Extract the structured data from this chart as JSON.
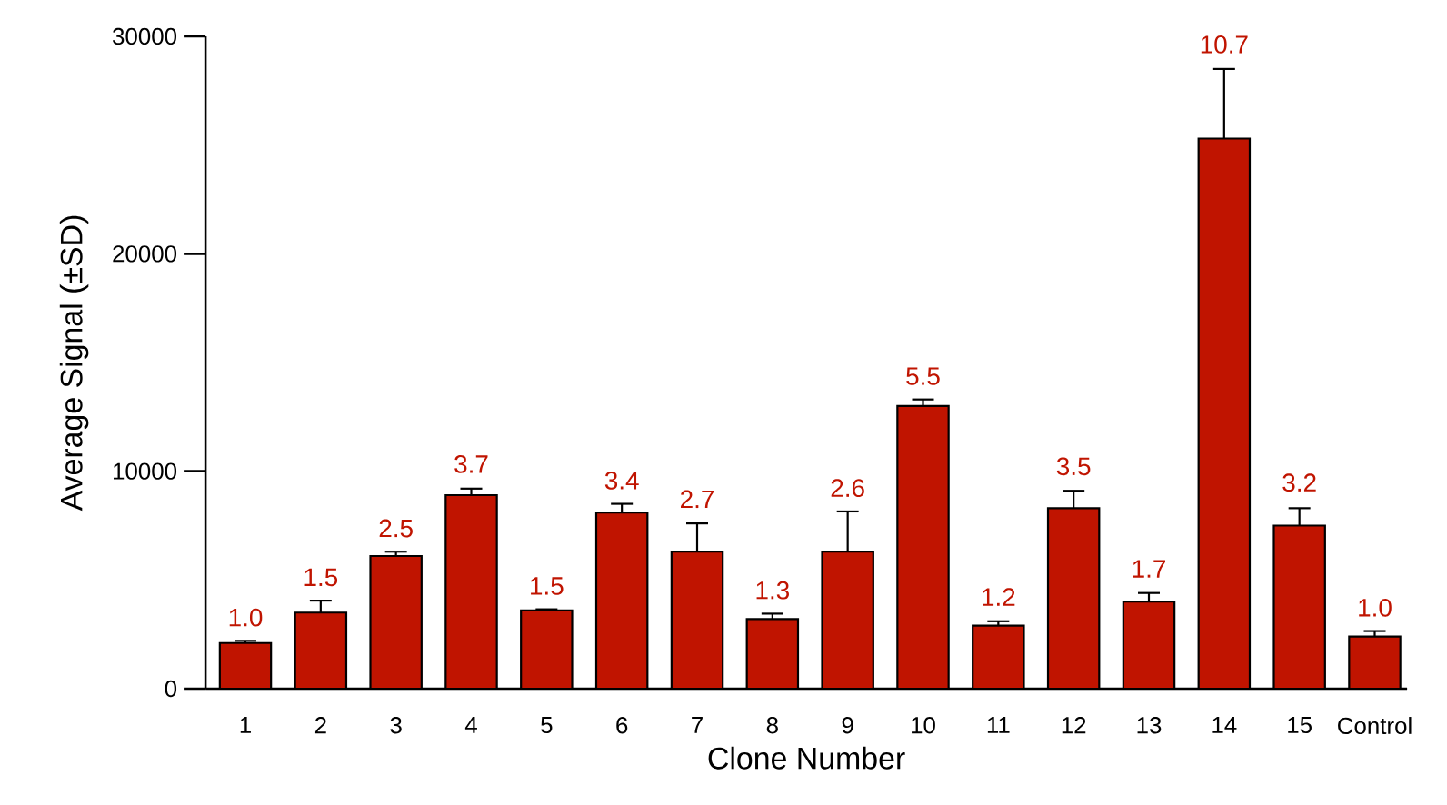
{
  "chart_data": {
    "type": "bar",
    "xlabel": "Clone Number",
    "ylabel": "Average Signal (±SD)",
    "categories": [
      "1",
      "2",
      "3",
      "4",
      "5",
      "6",
      "7",
      "8",
      "9",
      "10",
      "11",
      "12",
      "13",
      "14",
      "15",
      "Control"
    ],
    "values": [
      2100,
      3500,
      6100,
      8900,
      3600,
      8100,
      6300,
      3200,
      6300,
      13000,
      2900,
      8300,
      4000,
      25300,
      7500,
      2400
    ],
    "errors": [
      100,
      550,
      200,
      300,
      50,
      400,
      1300,
      250,
      1850,
      300,
      200,
      800,
      400,
      3200,
      800,
      250
    ],
    "annotations": [
      {
        "text": "1.0",
        "x": "1",
        "y": 2150
      },
      {
        "text": "1.5",
        "x": "2",
        "y": 4000
      },
      {
        "text": "2.5",
        "x": "3",
        "y": 6250
      },
      {
        "text": "3.7",
        "x": "4",
        "y": 9200
      },
      {
        "text": "1.5",
        "x": "5",
        "y": 3600
      },
      {
        "text": "3.4",
        "x": "6",
        "y": 8450
      },
      {
        "text": "2.7",
        "x": "7",
        "y": 7600
      },
      {
        "text": "1.3",
        "x": "8",
        "y": 3400
      },
      {
        "text": "2.6",
        "x": "9",
        "y": 8100
      },
      {
        "text": "5.5",
        "x": "10",
        "y": 13250
      },
      {
        "text": "1.2",
        "x": "11",
        "y": 3100
      },
      {
        "text": "3.5",
        "x": "12",
        "y": 9100
      },
      {
        "text": "1.7",
        "x": "13",
        "y": 4400
      },
      {
        "text": "10.7",
        "x": "14",
        "y": 28500
      },
      {
        "text": "3.2",
        "x": "15",
        "y": 8350
      },
      {
        "text": "1.0",
        "x": "Control",
        "y": 2600
      }
    ],
    "color": "#c01400",
    "ylim": [
      0,
      30000
    ],
    "yticks": [
      0,
      10000,
      20000,
      30000
    ]
  }
}
